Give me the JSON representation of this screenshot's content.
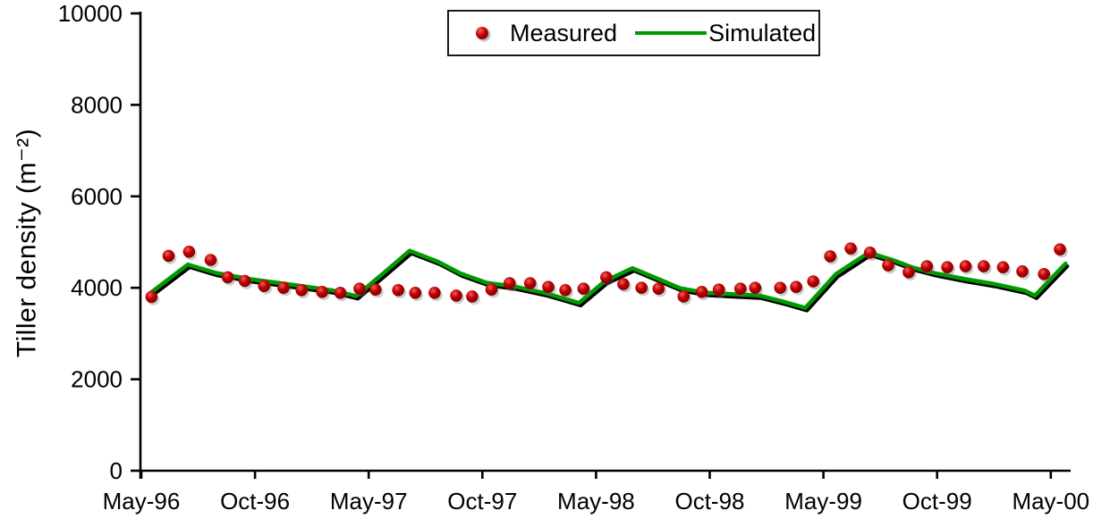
{
  "chart_data": {
    "type": "line",
    "title": "",
    "ylabel": "Tiller density (m⁻²)",
    "xlabel": "",
    "ylim": [
      0,
      10000
    ],
    "y_ticks": [
      0,
      2000,
      4000,
      6000,
      8000,
      10000
    ],
    "x_tick_labels": [
      "May-96",
      "Oct-96",
      "May-97",
      "Oct-97",
      "May-98",
      "Oct-98",
      "May-99",
      "Oct-99",
      "May-00"
    ],
    "x_unit_note": "x values are in axis-tick units: May-96 = 0 ... May-00 = 8 (ticks evenly spaced)",
    "grid": false,
    "legend_position": "top-center-boxed",
    "series": [
      {
        "name": "Measured",
        "type": "scatter",
        "color": "#c00000",
        "points": [
          [
            0.09,
            3800
          ],
          [
            0.24,
            4700
          ],
          [
            0.42,
            4790
          ],
          [
            0.61,
            4610
          ],
          [
            0.76,
            4230
          ],
          [
            0.91,
            4150
          ],
          [
            1.08,
            4040
          ],
          [
            1.25,
            4000
          ],
          [
            1.41,
            3950
          ],
          [
            1.59,
            3910
          ],
          [
            1.75,
            3890
          ],
          [
            1.92,
            3980
          ],
          [
            2.06,
            3960
          ],
          [
            2.26,
            3950
          ],
          [
            2.41,
            3890
          ],
          [
            2.58,
            3890
          ],
          [
            2.77,
            3830
          ],
          [
            2.91,
            3810
          ],
          [
            3.08,
            3960
          ],
          [
            3.24,
            4100
          ],
          [
            3.42,
            4100
          ],
          [
            3.58,
            4020
          ],
          [
            3.73,
            3950
          ],
          [
            3.89,
            3980
          ],
          [
            4.09,
            4230
          ],
          [
            4.24,
            4080
          ],
          [
            4.4,
            4000
          ],
          [
            4.55,
            3980
          ],
          [
            4.77,
            3810
          ],
          [
            4.93,
            3910
          ],
          [
            5.08,
            3960
          ],
          [
            5.27,
            3980
          ],
          [
            5.4,
            4000
          ],
          [
            5.62,
            4000
          ],
          [
            5.76,
            4020
          ],
          [
            5.91,
            4140
          ],
          [
            6.06,
            4690
          ],
          [
            6.24,
            4860
          ],
          [
            6.41,
            4770
          ],
          [
            6.57,
            4490
          ],
          [
            6.75,
            4340
          ],
          [
            6.91,
            4470
          ],
          [
            7.09,
            4450
          ],
          [
            7.25,
            4470
          ],
          [
            7.41,
            4470
          ],
          [
            7.58,
            4450
          ],
          [
            7.75,
            4360
          ],
          [
            7.94,
            4300
          ],
          [
            8.08,
            4840
          ]
        ]
      },
      {
        "name": "Simulated",
        "type": "line",
        "color": "#009a00",
        "points": [
          [
            0.06,
            3850
          ],
          [
            0.41,
            4510
          ],
          [
            0.65,
            4330
          ],
          [
            0.96,
            4190
          ],
          [
            1.35,
            4060
          ],
          [
            1.67,
            3950
          ],
          [
            1.89,
            3820
          ],
          [
            2.12,
            4300
          ],
          [
            2.36,
            4810
          ],
          [
            2.61,
            4570
          ],
          [
            2.81,
            4310
          ],
          [
            3.04,
            4110
          ],
          [
            3.28,
            4030
          ],
          [
            3.56,
            3880
          ],
          [
            3.85,
            3670
          ],
          [
            4.08,
            4150
          ],
          [
            4.32,
            4430
          ],
          [
            4.56,
            4180
          ],
          [
            4.74,
            3990
          ],
          [
            4.97,
            3890
          ],
          [
            5.21,
            3860
          ],
          [
            5.44,
            3830
          ],
          [
            5.66,
            3690
          ],
          [
            5.84,
            3560
          ],
          [
            6.11,
            4300
          ],
          [
            6.4,
            4770
          ],
          [
            6.62,
            4600
          ],
          [
            6.78,
            4450
          ],
          [
            6.98,
            4320
          ],
          [
            7.25,
            4190
          ],
          [
            7.49,
            4090
          ],
          [
            7.77,
            3940
          ],
          [
            7.86,
            3830
          ],
          [
            8.13,
            4530
          ]
        ]
      }
    ]
  }
}
